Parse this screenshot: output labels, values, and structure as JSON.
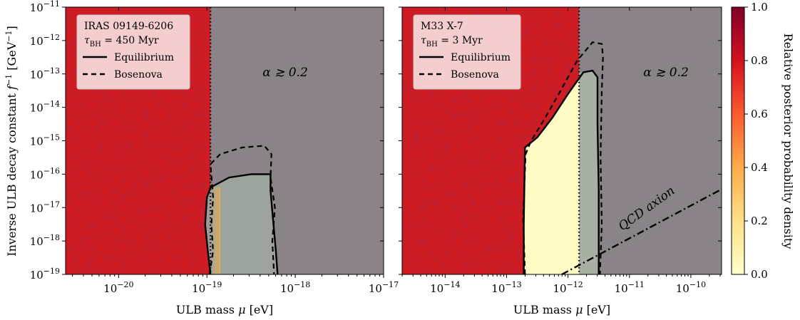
{
  "figure": {
    "ylabel": "Inverse ULB decay constant f⁻¹ [GeV⁻¹]",
    "ylabel_main": "Inverse ULB decay constant ",
    "ylabel_f": "f",
    "ylabel_sup1": "−1",
    "ylabel_unit": " [GeV",
    "ylabel_sup2": "−1",
    "ylabel_close": "]"
  },
  "colorbar": {
    "label": "Relative posterior probability density",
    "ticks": [
      "0.0",
      "0.2",
      "0.4",
      "0.6",
      "0.8",
      "1.0"
    ],
    "tick_values": [
      0.0,
      0.2,
      0.4,
      0.6,
      0.8,
      1.0
    ],
    "colors": [
      "#ffffcc",
      "#fee187",
      "#feab49",
      "#fc5b2e",
      "#d41020",
      "#800026"
    ]
  },
  "colors": {
    "excluded": "#ce1c22",
    "excluded_dark": "#a5101c",
    "gray_region": "#8a8488",
    "allowed_gray": "#9ea7a1",
    "allowed_yellow": "#fffbc4"
  },
  "chart_data": [
    {
      "type": "heatmap",
      "xlabel": "ULB mass μ [eV]",
      "xlabel_text": "ULB mass ",
      "xlabel_mu": "μ",
      "xlabel_unit": " [eV]",
      "xlim_log10": [
        -20.6,
        -17
      ],
      "ylim_log10": [
        -19,
        -11
      ],
      "xscale": "log",
      "yscale": "log",
      "xticks": [
        {
          "exp": -20,
          "label_base": "10",
          "label_exp": "−20"
        },
        {
          "exp": -19,
          "label_base": "10",
          "label_exp": "−19"
        },
        {
          "exp": -18,
          "label_base": "10",
          "label_exp": "−18"
        },
        {
          "exp": -17,
          "label_base": "10",
          "label_exp": "−17"
        }
      ],
      "yticks": [
        {
          "exp": -19,
          "label_base": "10",
          "label_exp": "−19"
        },
        {
          "exp": -18,
          "label_base": "10",
          "label_exp": "−18"
        },
        {
          "exp": -17,
          "label_base": "10",
          "label_exp": "−17"
        },
        {
          "exp": -16,
          "label_base": "10",
          "label_exp": "−16"
        },
        {
          "exp": -15,
          "label_base": "10",
          "label_exp": "−15"
        },
        {
          "exp": -14,
          "label_base": "10",
          "label_exp": "−14"
        },
        {
          "exp": -13,
          "label_base": "10",
          "label_exp": "−13"
        },
        {
          "exp": -12,
          "label_base": "10",
          "label_exp": "−12"
        },
        {
          "exp": -11,
          "label_base": "10",
          "label_exp": "−11"
        }
      ],
      "legend": {
        "source": "IRAS 09149-6206",
        "tau_sym": "τ",
        "tau_sub": "BH",
        "tau_value": " = 450 Myr",
        "entries": [
          {
            "label": "Equilibrium",
            "style": "solid"
          },
          {
            "label": "Bosenova",
            "style": "dashed"
          }
        ],
        "position": "top-left"
      },
      "annotation": "α ≳ 0.2",
      "alpha_limit_log10_mass": -18.96,
      "allowed_region_fill": "gray",
      "equilibrium_contour": [
        [
          -18.96,
          -19
        ],
        [
          -18.99,
          -18.3
        ],
        [
          -19.02,
          -17.5
        ],
        [
          -19.0,
          -16.7
        ],
        [
          -18.96,
          -16.4
        ],
        [
          -18.75,
          -16.1
        ],
        [
          -18.5,
          -16.0
        ],
        [
          -18.28,
          -16.0
        ],
        [
          -18.28,
          -16.5
        ],
        [
          -18.25,
          -17.4
        ],
        [
          -18.22,
          -18.3
        ],
        [
          -18.2,
          -19
        ]
      ],
      "bosenova_contour": [
        [
          -18.97,
          -19
        ],
        [
          -18.93,
          -18.3
        ],
        [
          -18.95,
          -17.5
        ],
        [
          -18.93,
          -16.7
        ],
        [
          -18.96,
          -15.7
        ],
        [
          -18.85,
          -15.4
        ],
        [
          -18.6,
          -15.2
        ],
        [
          -18.35,
          -15.15
        ],
        [
          -18.27,
          -15.4
        ],
        [
          -18.28,
          -16.1
        ],
        [
          -18.23,
          -17.0
        ],
        [
          -18.26,
          -18.0
        ],
        [
          -18.24,
          -19
        ]
      ]
    },
    {
      "type": "heatmap",
      "xlabel": "ULB mass μ [eV]",
      "xlabel_text": "ULB mass ",
      "xlabel_mu": "μ",
      "xlabel_unit": " [eV]",
      "xlim_log10": [
        -14.7,
        -9.5
      ],
      "ylim_log10": [
        -19,
        -11
      ],
      "xscale": "log",
      "yscale": "log",
      "xticks": [
        {
          "exp": -14,
          "label_base": "10",
          "label_exp": "−14"
        },
        {
          "exp": -13,
          "label_base": "10",
          "label_exp": "−13"
        },
        {
          "exp": -12,
          "label_base": "10",
          "label_exp": "−12"
        },
        {
          "exp": -11,
          "label_base": "10",
          "label_exp": "−11"
        },
        {
          "exp": -10,
          "label_base": "10",
          "label_exp": "−10"
        }
      ],
      "legend": {
        "source": "M33 X-7",
        "tau_sym": "τ",
        "tau_sub": "BH",
        "tau_value": " = 3 Myr",
        "entries": [
          {
            "label": "Equilibrium",
            "style": "solid"
          },
          {
            "label": "Bosenova",
            "style": "dashed"
          }
        ],
        "position": "top-left"
      },
      "annotation": "α ≳ 0.2",
      "qcd_label": "QCD axion",
      "qcd_line": [
        [
          -12.1,
          -19
        ],
        [
          -9.5,
          -16.45
        ]
      ],
      "alpha_limit_log10_mass": -11.82,
      "allowed_region_fill": "yellow",
      "equilibrium_contour": [
        [
          -12.72,
          -19
        ],
        [
          -12.72,
          -17.5
        ],
        [
          -12.7,
          -15.2
        ],
        [
          -12.5,
          -14.9
        ],
        [
          -12.25,
          -14.3
        ],
        [
          -12.0,
          -13.6
        ],
        [
          -11.75,
          -12.95
        ],
        [
          -11.6,
          -12.9
        ],
        [
          -11.52,
          -13.1
        ],
        [
          -11.52,
          -14.5
        ],
        [
          -11.5,
          -16.5
        ],
        [
          -11.5,
          -18.0
        ],
        [
          -11.5,
          -19
        ]
      ],
      "bosenova_contour": [
        [
          -12.7,
          -19
        ],
        [
          -12.73,
          -17.3
        ],
        [
          -12.69,
          -15.4
        ],
        [
          -12.6,
          -15.0
        ],
        [
          -12.4,
          -14.4
        ],
        [
          -12.15,
          -13.6
        ],
        [
          -11.85,
          -12.6
        ],
        [
          -11.6,
          -12.05
        ],
        [
          -11.45,
          -12.1
        ],
        [
          -11.43,
          -12.5
        ],
        [
          -11.45,
          -13.5
        ],
        [
          -11.47,
          -15.5
        ],
        [
          -11.45,
          -17.5
        ],
        [
          -11.48,
          -19
        ]
      ]
    }
  ]
}
